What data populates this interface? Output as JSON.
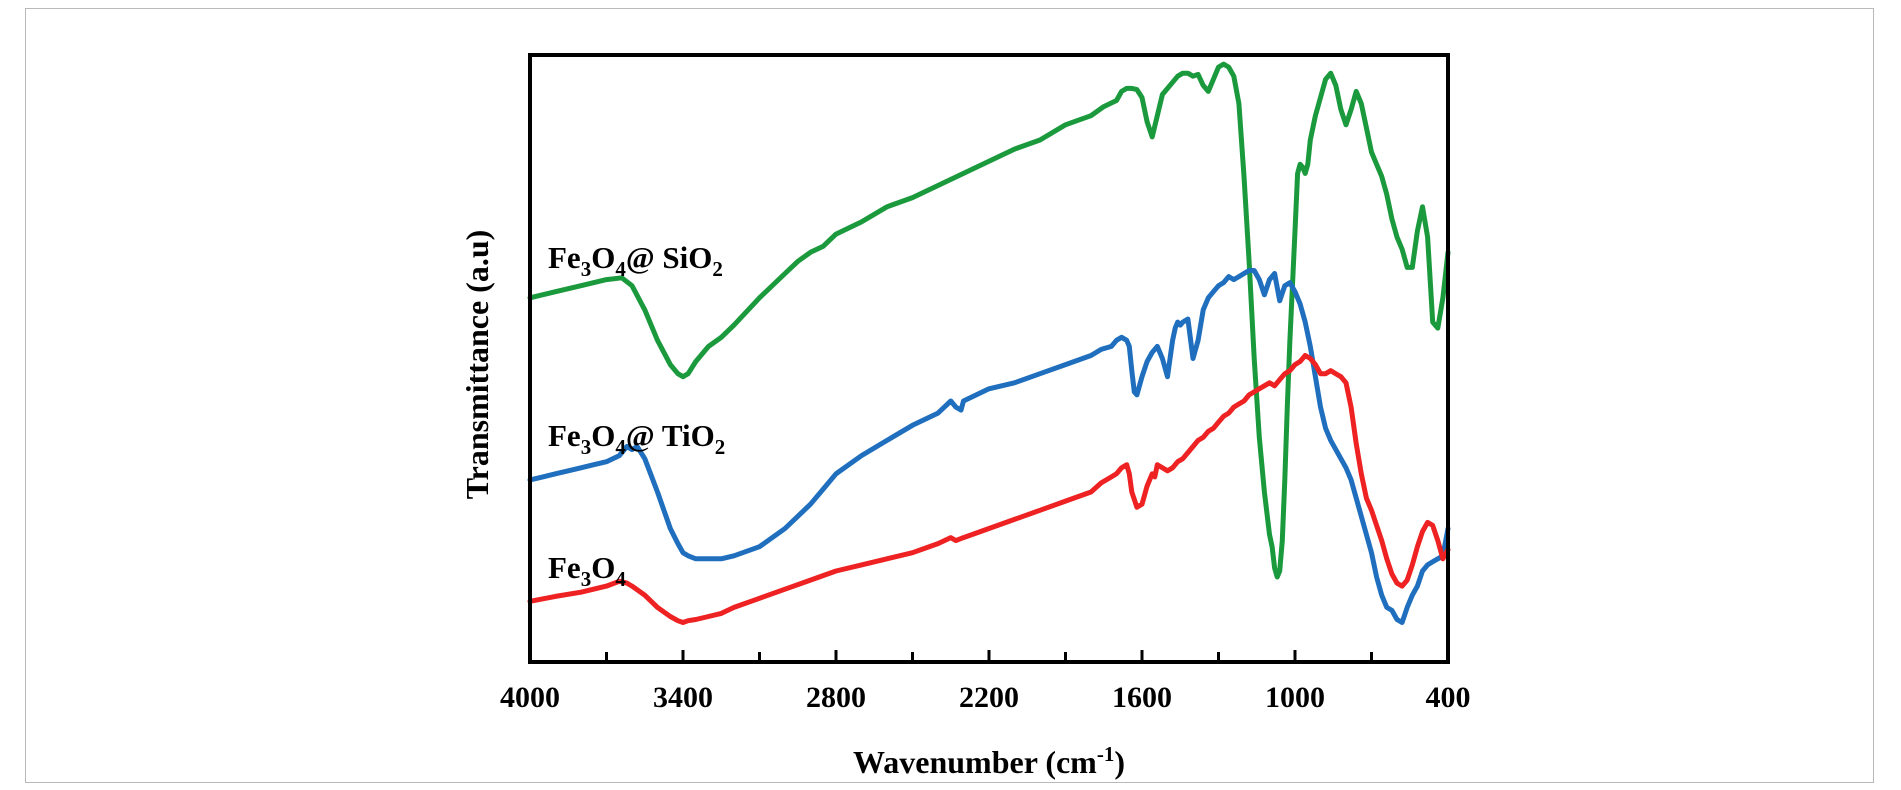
{
  "chart_data": {
    "type": "line",
    "xlabel": "Wavenumber (cm",
    "xlabel_sup": "-1",
    "xlabel_close": ")",
    "ylabel": "Transmittance (a.u)",
    "xlim": [
      4000,
      400
    ],
    "ylim": [
      0,
      100
    ],
    "x_reversed": true,
    "grid": false,
    "x_ticks": [
      4000,
      3400,
      2800,
      2200,
      1600,
      1000,
      400
    ],
    "x_tick_labels": [
      "4000",
      "3400",
      "2800",
      "2200",
      "1600",
      "1000",
      "400"
    ],
    "series": [
      {
        "name_parts": [
          "Fe",
          "3",
          "O",
          "4",
          "@ SiO",
          "2"
        ],
        "color": "#1a9a3c",
        "x": [
          4000,
          3900,
          3800,
          3700,
          3640,
          3600,
          3550,
          3500,
          3450,
          3420,
          3400,
          3380,
          3350,
          3300,
          3250,
          3200,
          3100,
          3000,
          2950,
          2900,
          2850,
          2800,
          2700,
          2600,
          2500,
          2400,
          2300,
          2200,
          2100,
          2000,
          1900,
          1800,
          1750,
          1700,
          1680,
          1660,
          1640,
          1620,
          1600,
          1580,
          1560,
          1520,
          1480,
          1460,
          1440,
          1420,
          1400,
          1380,
          1360,
          1340,
          1320,
          1300,
          1280,
          1260,
          1240,
          1220,
          1200,
          1180,
          1160,
          1140,
          1120,
          1100,
          1090,
          1080,
          1070,
          1060,
          1050,
          1040,
          1030,
          1020,
          1000,
          990,
          980,
          970,
          960,
          950,
          940,
          920,
          900,
          880,
          860,
          840,
          820,
          800,
          780,
          760,
          740,
          720,
          700,
          680,
          660,
          640,
          620,
          600,
          580,
          560,
          540,
          520,
          500,
          480,
          460,
          440,
          420,
          400
        ],
        "y": [
          60.0,
          61.0,
          62.0,
          63.0,
          63.3,
          62.0,
          58.0,
          53.0,
          49.0,
          47.5,
          47.0,
          47.5,
          49.5,
          52.0,
          53.5,
          55.5,
          60.0,
          64.0,
          66.0,
          67.5,
          68.5,
          70.5,
          72.5,
          75.0,
          76.5,
          78.5,
          80.5,
          82.5,
          84.5,
          86.0,
          88.5,
          90.0,
          91.5,
          92.5,
          94.0,
          94.5,
          94.5,
          94.3,
          93.0,
          89.0,
          86.5,
          93.5,
          95.5,
          96.5,
          97.0,
          97.0,
          96.5,
          96.8,
          95.0,
          94.0,
          96.0,
          98.0,
          98.5,
          98.0,
          96.5,
          92.0,
          80.0,
          66.0,
          50.0,
          37.0,
          28.0,
          21.0,
          19.0,
          15.5,
          14.0,
          15.0,
          20.0,
          30.0,
          42.0,
          53.0,
          71.0,
          80.5,
          82.0,
          81.5,
          80.5,
          82.0,
          86.0,
          90.0,
          93.0,
          96.0,
          97.0,
          95.0,
          91.0,
          88.5,
          91.0,
          94.0,
          92.0,
          88.0,
          84.0,
          82.0,
          80.0,
          77.0,
          73.0,
          70.0,
          68.0,
          65.0,
          65.0,
          71.0,
          75.0,
          70.0,
          56.0,
          55.0,
          60.0,
          67.5
        ]
      },
      {
        "name_parts": [
          "Fe",
          "3",
          "O",
          "4",
          "@ TiO",
          "2"
        ],
        "color": "#1f6fbe",
        "x": [
          4000,
          3950,
          3900,
          3850,
          3800,
          3750,
          3700,
          3650,
          3620,
          3600,
          3580,
          3550,
          3500,
          3450,
          3420,
          3400,
          3380,
          3350,
          3300,
          3250,
          3200,
          3100,
          3000,
          2950,
          2900,
          2850,
          2800,
          2700,
          2600,
          2500,
          2400,
          2350,
          2330,
          2310,
          2300,
          2200,
          2100,
          2000,
          1900,
          1800,
          1760,
          1720,
          1700,
          1680,
          1660,
          1650,
          1640,
          1630,
          1620,
          1600,
          1580,
          1560,
          1550,
          1540,
          1520,
          1500,
          1480,
          1470,
          1460,
          1450,
          1440,
          1420,
          1400,
          1380,
          1360,
          1340,
          1320,
          1300,
          1280,
          1260,
          1240,
          1220,
          1200,
          1180,
          1160,
          1140,
          1120,
          1100,
          1080,
          1060,
          1040,
          1020,
          1000,
          980,
          960,
          940,
          920,
          900,
          880,
          860,
          840,
          820,
          800,
          780,
          760,
          740,
          720,
          700,
          680,
          660,
          640,
          620,
          600,
          580,
          560,
          540,
          520,
          500,
          480,
          460,
          440,
          420,
          400
        ],
        "y": [
          30.0,
          30.5,
          31.0,
          31.5,
          32.0,
          32.5,
          33.0,
          34.0,
          35.5,
          35.0,
          35.5,
          33.5,
          28.0,
          22.0,
          19.5,
          18.0,
          17.5,
          17.0,
          17.0,
          17.0,
          17.5,
          19.0,
          22.0,
          24.0,
          26.0,
          28.5,
          31.0,
          34.0,
          36.5,
          39.0,
          41.0,
          43.0,
          42.0,
          41.5,
          43.0,
          45.0,
          46.0,
          47.5,
          49.0,
          50.5,
          51.5,
          52.0,
          53.0,
          53.5,
          53.0,
          52.0,
          48.0,
          44.5,
          44.0,
          47.0,
          49.5,
          51.0,
          51.5,
          52.0,
          50.0,
          47.0,
          53.0,
          55.0,
          56.0,
          55.5,
          56.0,
          56.5,
          50.0,
          53.0,
          58.0,
          60.0,
          61.0,
          62.0,
          62.5,
          63.5,
          63.0,
          63.5,
          64.0,
          64.5,
          64.5,
          63.0,
          60.5,
          63.0,
          64.0,
          59.5,
          62.0,
          62.5,
          61.0,
          59.0,
          56.0,
          52.0,
          47.0,
          42.0,
          38.5,
          36.5,
          35.0,
          33.5,
          32.0,
          30.0,
          27.0,
          24.0,
          21.0,
          18.0,
          14.0,
          11.0,
          9.0,
          8.5,
          7.0,
          6.5,
          9.0,
          11.0,
          12.5,
          15.0,
          16.0,
          16.5,
          17.0,
          17.5,
          22.0
        ]
      },
      {
        "name_parts": [
          "Fe",
          "3",
          "O",
          "4"
        ],
        "color": "#ee2222",
        "x": [
          4000,
          3900,
          3800,
          3700,
          3650,
          3620,
          3600,
          3550,
          3500,
          3450,
          3420,
          3400,
          3380,
          3350,
          3300,
          3250,
          3200,
          3100,
          3000,
          2900,
          2800,
          2700,
          2600,
          2500,
          2400,
          2350,
          2330,
          2300,
          2200,
          2100,
          2000,
          1900,
          1800,
          1760,
          1720,
          1700,
          1680,
          1660,
          1650,
          1640,
          1620,
          1600,
          1580,
          1560,
          1550,
          1540,
          1520,
          1500,
          1480,
          1460,
          1440,
          1420,
          1400,
          1380,
          1360,
          1340,
          1320,
          1300,
          1280,
          1260,
          1240,
          1220,
          1200,
          1180,
          1160,
          1140,
          1120,
          1100,
          1080,
          1060,
          1040,
          1020,
          1000,
          980,
          960,
          940,
          920,
          900,
          880,
          860,
          840,
          820,
          800,
          780,
          760,
          740,
          720,
          700,
          680,
          660,
          640,
          620,
          600,
          580,
          560,
          540,
          520,
          500,
          480,
          460,
          440,
          420,
          400
        ],
        "y": [
          10.0,
          10.8,
          11.5,
          12.5,
          13.3,
          13.0,
          12.5,
          11.0,
          9.0,
          7.5,
          6.8,
          6.5,
          6.8,
          7.0,
          7.5,
          8.0,
          9.0,
          10.5,
          12.0,
          13.5,
          15.0,
          16.0,
          17.0,
          18.0,
          19.5,
          20.5,
          20.0,
          20.5,
          22.0,
          23.5,
          25.0,
          26.5,
          28.0,
          29.5,
          30.5,
          31.0,
          32.0,
          32.5,
          31.0,
          28.0,
          25.5,
          26.0,
          29.0,
          31.0,
          30.5,
          32.5,
          32.0,
          31.5,
          32.0,
          33.0,
          33.5,
          34.5,
          35.5,
          36.5,
          37.0,
          38.0,
          38.5,
          39.5,
          40.5,
          41.0,
          42.0,
          42.5,
          43.0,
          44.0,
          44.5,
          45.0,
          45.5,
          46.0,
          45.5,
          46.5,
          47.5,
          48.0,
          49.0,
          49.5,
          50.5,
          50.0,
          49.0,
          47.5,
          47.5,
          48.0,
          47.5,
          47.0,
          46.0,
          42.0,
          36.0,
          31.0,
          27.0,
          25.0,
          22.5,
          20.0,
          17.0,
          14.5,
          13.0,
          12.5,
          13.5,
          16.0,
          19.0,
          21.5,
          23.0,
          22.5,
          20.0,
          17.0,
          18.5
        ]
      }
    ]
  }
}
